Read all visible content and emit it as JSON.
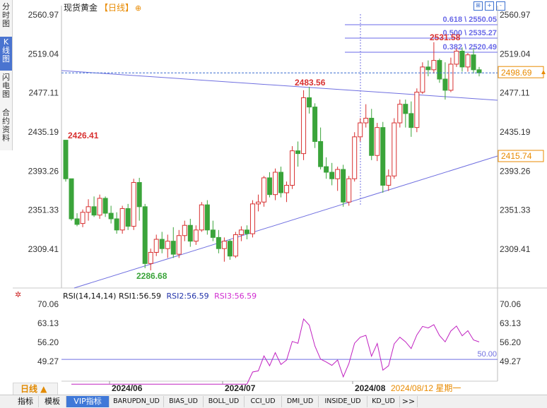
{
  "sidebar": {
    "items": [
      "分时图",
      "K线图",
      "闪电图",
      "合约资料"
    ],
    "active_index": 1
  },
  "header": {
    "symbol": "现货黄金",
    "period_tag": "【日线】",
    "icon": "target-icon"
  },
  "price_axis": {
    "left_ticks": [
      "2560.97",
      "2519.04",
      "2477.11",
      "2435.19",
      "2393.26",
      "2351.33",
      "2309.41"
    ],
    "right_ticks": [
      "2560.97",
      "2519.04",
      "2477.11",
      "2435.19",
      "2393.26",
      "2351.33",
      "2309.41"
    ],
    "ylim": [
      2285,
      2568
    ]
  },
  "annotations": {
    "high_label": "2483.56",
    "low_label": "2286.68",
    "left_label": "2426.41",
    "peak_label": "2531.58",
    "fib_618": "0.618 \\ 2550.05",
    "fib_500": "0.500 \\ 2535.27",
    "fib_382": "0.382 \\ 2520.49",
    "current_price": "2498.69",
    "trendline_value": "2415.74"
  },
  "rsi": {
    "header": "RSI(14,14,14)",
    "rsi1": "RSI1:56.59",
    "rsi2": "RSI2:56.59",
    "rsi3": "RSI3:56.59",
    "ticks": [
      "70.06",
      "63.13",
      "56.20",
      "49.27"
    ],
    "level_label": "50.00",
    "ylim": [
      41,
      72
    ]
  },
  "x_axis": {
    "labels": [
      "2024/06",
      "2024/07",
      "2024/08"
    ],
    "cursor_date": "2024/08/12 星期一"
  },
  "period_button": "日线 ▲",
  "tabs": [
    "指标",
    "模板",
    "VIP指标",
    "BARUPDN_UD",
    "BIAS_UD",
    "BOLL_UD",
    "CCI_UD",
    "DMI_UD",
    "INSIDE_UD",
    "KD_UD",
    ">>"
  ],
  "colors": {
    "up": "#d83030",
    "down": "#3aa43a",
    "trend": "#6f6fe0",
    "rsi": "#c020c0",
    "accent": "#e88a00",
    "fib": "#6a6ae8"
  },
  "chart_data": {
    "type": "candlestick",
    "title": "现货黄金 【日线】",
    "ohlc": [
      [
        2426.4,
        2426.4,
        2382.0,
        2385.0
      ],
      [
        2385.0,
        2385.0,
        2340.0,
        2342.0
      ],
      [
        2342.0,
        2348.0,
        2334.0,
        2336.0
      ],
      [
        2337.0,
        2352.0,
        2333.0,
        2349.0
      ],
      [
        2349.0,
        2363.0,
        2340.0,
        2355.0
      ],
      [
        2355.0,
        2366.0,
        2344.0,
        2346.0
      ],
      [
        2346.0,
        2368.0,
        2342.0,
        2364.0
      ],
      [
        2364.0,
        2366.0,
        2344.0,
        2348.0
      ],
      [
        2348.0,
        2356.0,
        2337.0,
        2342.0
      ],
      [
        2342.0,
        2349.0,
        2326.0,
        2330.0
      ],
      [
        2330.0,
        2356.0,
        2326.0,
        2353.0
      ],
      [
        2353.0,
        2358.0,
        2330.0,
        2334.0
      ],
      [
        2334.0,
        2385.0,
        2330.0,
        2381.0
      ],
      [
        2381.0,
        2386.0,
        2340.0,
        2355.0
      ],
      [
        2355.0,
        2358.0,
        2289.0,
        2294.0
      ],
      [
        2294.0,
        2310.0,
        2286.7,
        2306.0
      ],
      [
        2306.0,
        2325.0,
        2302.0,
        2320.0
      ],
      [
        2320.0,
        2328.0,
        2305.0,
        2310.0
      ],
      [
        2310.0,
        2325.0,
        2300.0,
        2318.0
      ],
      [
        2318.0,
        2333.0,
        2300.0,
        2304.0
      ],
      [
        2304.0,
        2330.0,
        2300.0,
        2324.0
      ],
      [
        2324.0,
        2340.0,
        2318.0,
        2335.0
      ],
      [
        2335.0,
        2342.0,
        2312.0,
        2318.0
      ],
      [
        2318.0,
        2335.0,
        2314.0,
        2330.0
      ],
      [
        2330.0,
        2360.0,
        2328.0,
        2357.0
      ],
      [
        2357.0,
        2362.0,
        2325.0,
        2330.0
      ],
      [
        2330.0,
        2340.0,
        2318.0,
        2322.0
      ],
      [
        2322.0,
        2330.0,
        2305.0,
        2310.0
      ],
      [
        2310.0,
        2322.0,
        2296.0,
        2318.0
      ],
      [
        2318.0,
        2320.0,
        2298.0,
        2302.0
      ],
      [
        2302.0,
        2328.0,
        2300.0,
        2325.0
      ],
      [
        2325.0,
        2334.0,
        2318.0,
        2330.0
      ],
      [
        2330.0,
        2335.0,
        2320.0,
        2326.0
      ],
      [
        2326.0,
        2362.0,
        2322.0,
        2358.0
      ],
      [
        2358.0,
        2368.0,
        2350.0,
        2360.0
      ],
      [
        2360.0,
        2388.0,
        2355.0,
        2386.0
      ],
      [
        2386.0,
        2392.0,
        2365.0,
        2368.0
      ],
      [
        2368.0,
        2396.0,
        2362.0,
        2392.0
      ],
      [
        2392.0,
        2398.0,
        2365.0,
        2370.0
      ],
      [
        2370.0,
        2382.0,
        2360.0,
        2378.0
      ],
      [
        2378.0,
        2420.0,
        2374.0,
        2415.0
      ],
      [
        2415.0,
        2425.0,
        2398.0,
        2412.0
      ],
      [
        2412.0,
        2480.0,
        2405.0,
        2472.0
      ],
      [
        2472.0,
        2483.6,
        2455.0,
        2462.0
      ],
      [
        2462.0,
        2466.0,
        2418.0,
        2425.0
      ],
      [
        2425.0,
        2440.0,
        2395.0,
        2398.0
      ],
      [
        2398.0,
        2408.0,
        2385.0,
        2392.0
      ],
      [
        2392.0,
        2402.0,
        2378.0,
        2385.0
      ],
      [
        2385.0,
        2398.0,
        2372.0,
        2395.0
      ],
      [
        2395.0,
        2400.0,
        2355.0,
        2360.0
      ],
      [
        2360.0,
        2388.0,
        2356.0,
        2385.0
      ],
      [
        2385.0,
        2435.0,
        2382.0,
        2430.0
      ],
      [
        2430.0,
        2450.0,
        2425.0,
        2445.0
      ],
      [
        2445.0,
        2465.0,
        2440.0,
        2450.0
      ],
      [
        2450.0,
        2460.0,
        2405.0,
        2410.0
      ],
      [
        2410.0,
        2445.0,
        2404.0,
        2440.0
      ],
      [
        2440.0,
        2446.0,
        2370.0,
        2378.0
      ],
      [
        2378.0,
        2395.0,
        2372.0,
        2388.0
      ],
      [
        2388.0,
        2450.0,
        2385.0,
        2445.0
      ],
      [
        2445.0,
        2470.0,
        2440.0,
        2465.0
      ],
      [
        2465.0,
        2470.0,
        2440.0,
        2455.0
      ],
      [
        2455.0,
        2468.0,
        2430.0,
        2440.0
      ],
      [
        2440.0,
        2482.0,
        2435.0,
        2478.0
      ],
      [
        2478.0,
        2510.0,
        2476.0,
        2505.0
      ],
      [
        2505.0,
        2512.0,
        2495.0,
        2502.0
      ],
      [
        2502.0,
        2531.6,
        2498.0,
        2512.0
      ],
      [
        2512.0,
        2514.0,
        2488.0,
        2492.0
      ],
      [
        2492.0,
        2510.0,
        2470.0,
        2480.0
      ],
      [
        2480.0,
        2515.0,
        2478.0,
        2508.0
      ],
      [
        2508.0,
        2525.0,
        2505.0,
        2522.0
      ],
      [
        2522.0,
        2526.0,
        2500.0,
        2505.0
      ],
      [
        2505.0,
        2520.0,
        2500.0,
        2518.0
      ],
      [
        2518.0,
        2525.0,
        2498.0,
        2502.0
      ],
      [
        2502.0,
        2505.0,
        2495.0,
        2498.7
      ]
    ]
  }
}
